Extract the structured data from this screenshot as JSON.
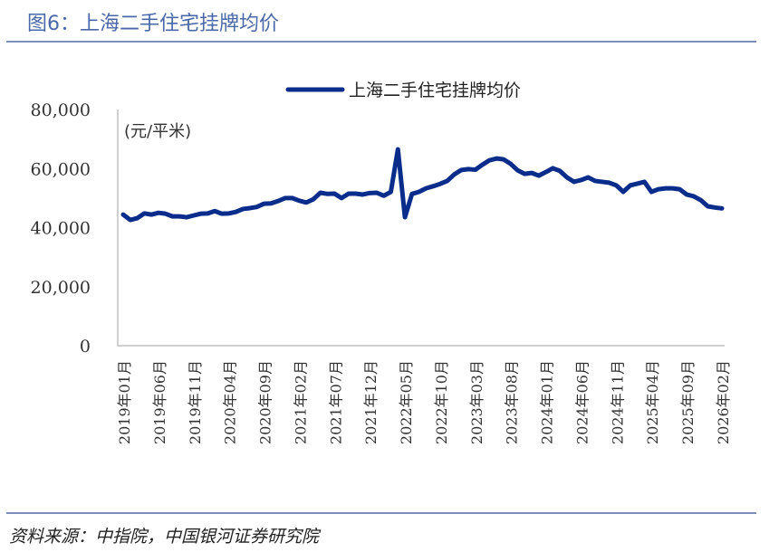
{
  "header": {
    "title": "图6：上海二手住宅挂牌均价"
  },
  "footer": {
    "source": "资料来源：中指院，中国银河证券研究院"
  },
  "chart_data": {
    "type": "line",
    "title": "",
    "ylabel": "(元/平米)",
    "ylim": [
      0,
      80000
    ],
    "yticks": [
      0,
      20000,
      40000,
      60000,
      80000
    ],
    "ytick_labels": [
      "0",
      "20,000",
      "40,000",
      "60,000",
      "80,000"
    ],
    "xtick_labels": [
      "2019年01月",
      "2019年06月",
      "2019年11月",
      "2020年04月",
      "2020年09月",
      "2021年02月",
      "2021年07月",
      "2021年12月",
      "2022年05月",
      "2022年10月",
      "2023年03月",
      "2023年08月",
      "2024年01月",
      "2024年06月",
      "2024年11月",
      "2025年04月",
      "2025年09月",
      "2026年02月"
    ],
    "x_start": "2019-01",
    "x_end": "2026-02",
    "legend": "top-center",
    "grid": false,
    "color": "#0a2d8c",
    "series": [
      {
        "name": "上海二手住宅挂牌均价",
        "values": [
          44400,
          42600,
          43200,
          44800,
          44400,
          45000,
          44700,
          43800,
          43800,
          43500,
          44100,
          44700,
          44800,
          45600,
          44700,
          44800,
          45300,
          46300,
          46600,
          47000,
          48100,
          48200,
          49000,
          50000,
          50000,
          49100,
          48500,
          49600,
          51800,
          51400,
          51500,
          50000,
          51500,
          51500,
          51200,
          51700,
          51800,
          50800,
          52100,
          66500,
          43500,
          51400,
          52100,
          53300,
          54000,
          54800,
          55800,
          58000,
          59500,
          59800,
          59600,
          61300,
          62800,
          63400,
          63100,
          61600,
          59400,
          58200,
          58500,
          57600,
          58800,
          60100,
          59200,
          57000,
          55500,
          56100,
          57000,
          55800,
          55500,
          55200,
          54300,
          52100,
          54300,
          54900,
          55500,
          52100,
          53000,
          53300,
          53300,
          53000,
          51200,
          50600,
          49300,
          47200,
          46800,
          46500
        ]
      }
    ]
  }
}
